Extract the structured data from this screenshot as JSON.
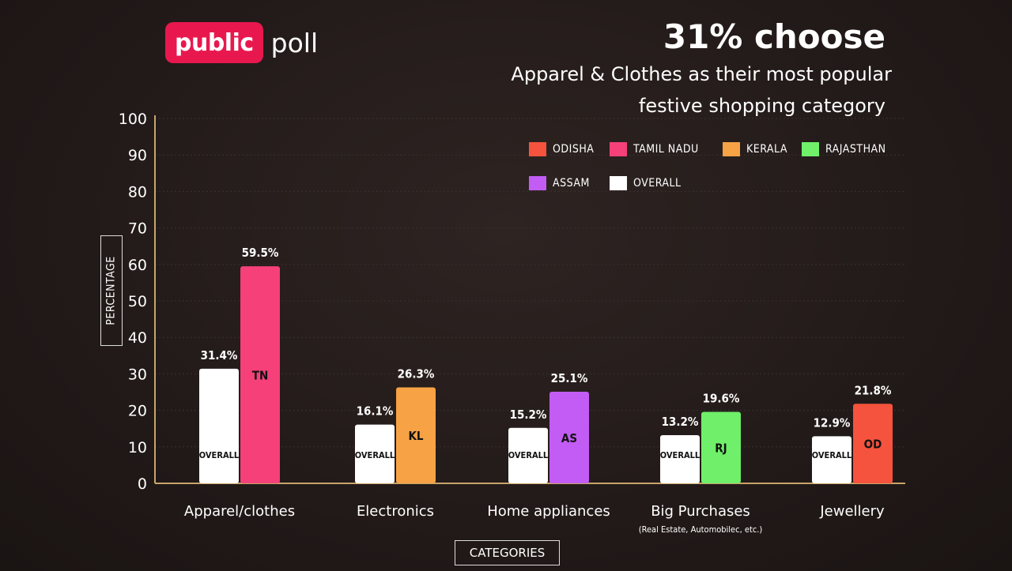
{
  "branding": {
    "logo_text": "public",
    "logo_suffix": "poll",
    "brand_color": "#e8184f"
  },
  "headline": {
    "title": "31% choose",
    "subtitle_line1": "Apparel & Clothes as their most popular",
    "subtitle_line2": "festive shopping category"
  },
  "chart_data": {
    "type": "bar",
    "ylabel": "PERCENTAGE",
    "xlabel": "CATEGORIES",
    "ylim": [
      0,
      100
    ],
    "yticks": [
      0,
      10,
      20,
      30,
      40,
      50,
      60,
      70,
      80,
      90,
      100
    ],
    "grid": true,
    "legend_position": "top-right",
    "legend": [
      {
        "name": "ODISHA",
        "color": "#f5533d"
      },
      {
        "name": "TAMIL NADU",
        "color": "#f5407a"
      },
      {
        "name": "KERALA",
        "color": "#f7a245"
      },
      {
        "name": "RAJASTHAN",
        "color": "#6fef6a"
      },
      {
        "name": "ASSAM",
        "color": "#c35cf5"
      },
      {
        "name": "OVERALL",
        "color": "#ffffff"
      }
    ],
    "categories": [
      {
        "label": "Apparel/clothes",
        "sublabel": "",
        "overall": 31.4,
        "overall_label": "31.4%",
        "overall_text": "OVERALL",
        "state_value": 59.5,
        "state_label": "59.5%",
        "state_code": "TN",
        "state_color": "#f5407a"
      },
      {
        "label": "Electronics",
        "sublabel": "",
        "overall": 16.1,
        "overall_label": "16.1%",
        "overall_text": "OVERALL",
        "state_value": 26.3,
        "state_label": "26.3%",
        "state_code": "KL",
        "state_color": "#f7a245"
      },
      {
        "label": "Home appliances",
        "sublabel": "",
        "overall": 15.2,
        "overall_label": "15.2%",
        "overall_text": "OVERALL",
        "state_value": 25.1,
        "state_label": "25.1%",
        "state_code": "AS",
        "state_color": "#c35cf5"
      },
      {
        "label": "Big Purchases",
        "sublabel": "(Real Estate, Automobilec, etc.)",
        "overall": 13.2,
        "overall_label": "13.2%",
        "overall_text": "OVERALL",
        "state_value": 19.6,
        "state_label": "19.6%",
        "state_code": "RJ",
        "state_color": "#6fef6a"
      },
      {
        "label": "Jewellery",
        "sublabel": "",
        "overall": 12.9,
        "overall_label": "12.9%",
        "overall_text": "OVERALL",
        "state_value": 21.8,
        "state_label": "21.8%",
        "state_code": "OD",
        "state_color": "#f5533d"
      }
    ]
  }
}
